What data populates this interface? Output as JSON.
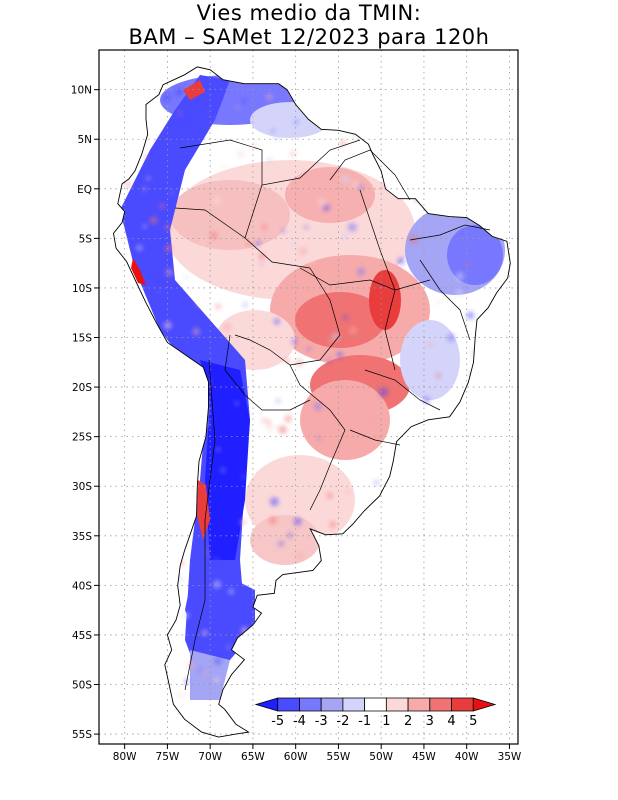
{
  "title": {
    "line1": "Vies medio da TMIN:",
    "line2": "BAM – SAMet 12/2023  para 120h"
  },
  "map": {
    "lon_range": [
      -83,
      -34
    ],
    "lat_range": [
      -56,
      14
    ],
    "lat_ticks": [
      {
        "value": 10,
        "label": "10N"
      },
      {
        "value": 5,
        "label": "5N"
      },
      {
        "value": 0,
        "label": "EQ"
      },
      {
        "value": -5,
        "label": "5S"
      },
      {
        "value": -10,
        "label": "10S"
      },
      {
        "value": -15,
        "label": "15S"
      },
      {
        "value": -20,
        "label": "20S"
      },
      {
        "value": -25,
        "label": "25S"
      },
      {
        "value": -30,
        "label": "30S"
      },
      {
        "value": -35,
        "label": "35S"
      },
      {
        "value": -40,
        "label": "40S"
      },
      {
        "value": -45,
        "label": "45S"
      },
      {
        "value": -50,
        "label": "50S"
      },
      {
        "value": -55,
        "label": "55S"
      }
    ],
    "lon_ticks": [
      {
        "value": -80,
        "label": "80W"
      },
      {
        "value": -75,
        "label": "75W"
      },
      {
        "value": -70,
        "label": "70W"
      },
      {
        "value": -65,
        "label": "65W"
      },
      {
        "value": -60,
        "label": "60W"
      },
      {
        "value": -55,
        "label": "55W"
      },
      {
        "value": -50,
        "label": "50W"
      },
      {
        "value": -45,
        "label": "45W"
      },
      {
        "value": -40,
        "label": "40W"
      },
      {
        "value": -35,
        "label": "35W"
      }
    ]
  },
  "colorbar": {
    "labels": [
      "-5",
      "-4",
      "-3",
      "-2",
      "-1",
      "1",
      "2",
      "3",
      "4",
      "5"
    ],
    "colors": [
      "#1f1fff",
      "#4a4aff",
      "#7878ff",
      "#a5a5f5",
      "#d4d4fa",
      "#ffffff",
      "#fcd9d9",
      "#f7aaaa",
      "#f07272",
      "#e93c3c",
      "#e81010"
    ]
  },
  "regions": [
    {
      "name": "amazon-warm-bias",
      "lon": [
        -66,
        -50
      ],
      "lat": [
        -10,
        5
      ],
      "value": 1.5
    },
    {
      "name": "central-brazil-warm-bias",
      "lon": [
        -56,
        -46
      ],
      "lat": [
        -22,
        -10
      ],
      "value": 3
    },
    {
      "name": "andes-cold-bias",
      "lon": [
        -75,
        -66
      ],
      "lat": [
        -35,
        8
      ],
      "value": -5
    },
    {
      "name": "patagonia-cold-bias",
      "lon": [
        -74,
        -66
      ],
      "lat": [
        -52,
        -38
      ],
      "value": -4
    },
    {
      "name": "northeast-brazil-cold-bias",
      "lon": [
        -44,
        -35
      ],
      "lat": [
        -16,
        -3
      ],
      "value": -2
    }
  ],
  "colors": {
    "frame": "#000000",
    "grid": "#9a9a9a",
    "coast": "#000000",
    "land": "#ffffff"
  }
}
